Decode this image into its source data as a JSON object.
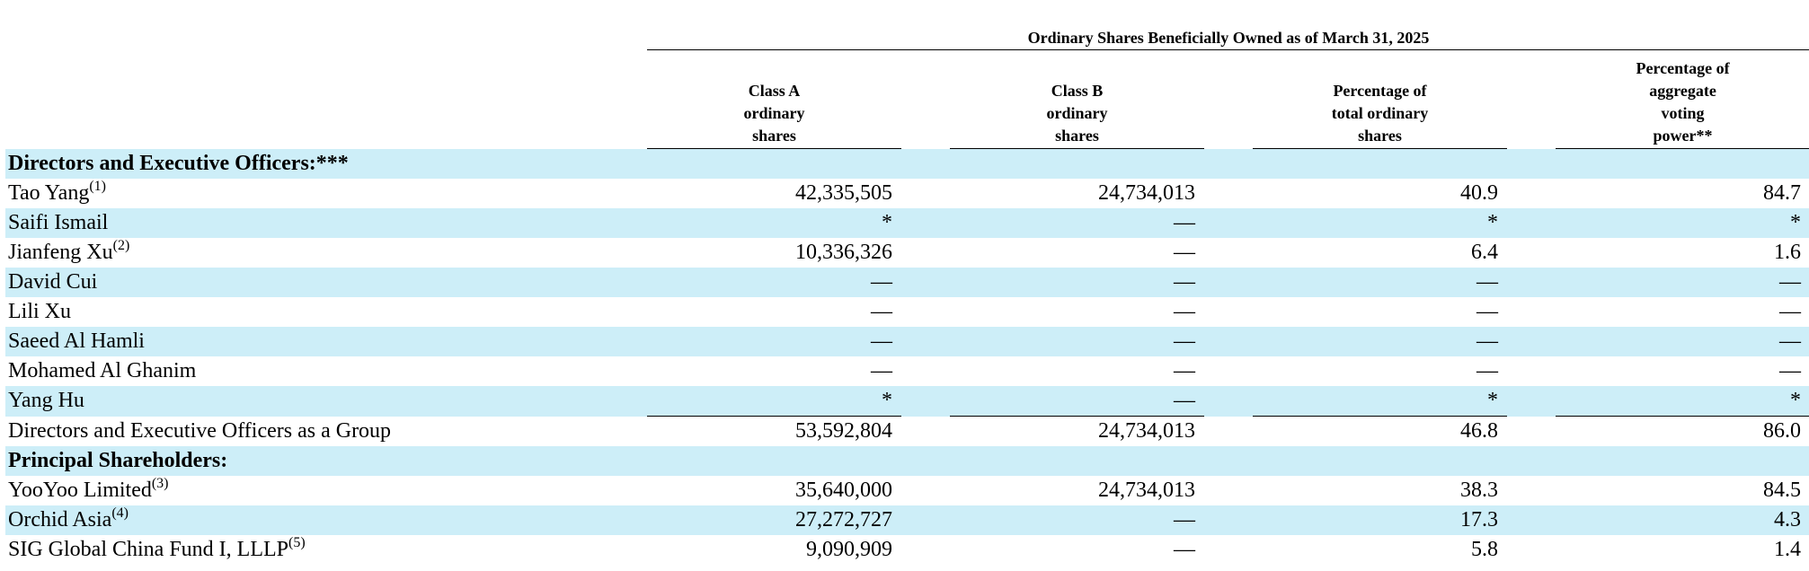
{
  "table": {
    "super_header": "Ordinary Shares Beneficially Owned as of March 31, 2025",
    "columns": [
      {
        "line1": "Class A",
        "line2": "ordinary",
        "line3": "shares",
        "line4": ""
      },
      {
        "line1": "Class B",
        "line2": "ordinary",
        "line3": "shares",
        "line4": ""
      },
      {
        "line1": "Percentage of",
        "line2": "total ordinary",
        "line3": "shares",
        "line4": ""
      },
      {
        "line1": "Percentage of",
        "line2": "aggregate",
        "line3": "voting",
        "line4": "power**"
      }
    ],
    "rows": [
      {
        "name": "Directors and Executive Officers:***",
        "sup": "",
        "a": "",
        "b": "",
        "pct_total": "",
        "pct_voting": ""
      },
      {
        "name": "Tao Yang",
        "sup": "(1)",
        "a": "42,335,505",
        "b": "24,734,013",
        "pct_total": "40.9",
        "pct_voting": "84.7"
      },
      {
        "name": "Saifi Ismail",
        "sup": "",
        "a": "*",
        "b": "—",
        "pct_total": "*",
        "pct_voting": "*"
      },
      {
        "name": "Jianfeng Xu",
        "sup": "(2)",
        "a": "10,336,326",
        "b": "—",
        "pct_total": "6.4",
        "pct_voting": "1.6"
      },
      {
        "name": "David Cui",
        "sup": "",
        "a": "—",
        "b": "—",
        "pct_total": "—",
        "pct_voting": "—"
      },
      {
        "name": "Lili Xu",
        "sup": "",
        "a": "—",
        "b": "—",
        "pct_total": "—",
        "pct_voting": "—"
      },
      {
        "name": "Saeed Al Hamli",
        "sup": "",
        "a": "—",
        "b": "—",
        "pct_total": "—",
        "pct_voting": "—"
      },
      {
        "name": "Mohamed Al Ghanim",
        "sup": "",
        "a": "—",
        "b": "—",
        "pct_total": "—",
        "pct_voting": "—"
      },
      {
        "name": "Yang Hu",
        "sup": "",
        "a": "*",
        "b": "—",
        "pct_total": "*",
        "pct_voting": "*"
      },
      {
        "name": "Directors and Executive Officers as a Group",
        "sup": "",
        "a": "53,592,804",
        "b": "24,734,013",
        "pct_total": "46.8",
        "pct_voting": "86.0"
      },
      {
        "name": "Principal Shareholders:",
        "sup": "",
        "a": "",
        "b": "",
        "pct_total": "",
        "pct_voting": ""
      },
      {
        "name": "YooYoo Limited",
        "sup": "(3)",
        "a": "35,640,000",
        "b": "24,734,013",
        "pct_total": "38.3",
        "pct_voting": "84.5"
      },
      {
        "name": "Orchid Asia",
        "sup": "(4)",
        "a": "27,272,727",
        "b": "—",
        "pct_total": "17.3",
        "pct_voting": "4.3"
      },
      {
        "name": "SIG Global China Fund I, LLLP",
        "sup": "(5)",
        "a": "9,090,909",
        "b": "—",
        "pct_total": "5.8",
        "pct_voting": "1.4"
      }
    ]
  }
}
